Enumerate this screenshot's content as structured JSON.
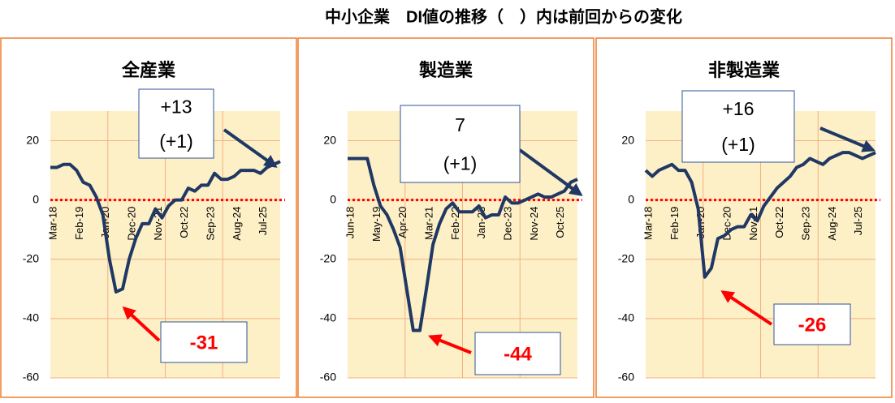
{
  "title": "中小企業　DI値の推移（　）内は前回からの変化",
  "chart_data": [
    {
      "type": "line",
      "title": "全産業",
      "categories": [
        "Mar-18",
        null,
        null,
        null,
        "Feb-19",
        null,
        null,
        null,
        "Jan-20",
        null,
        null,
        null,
        "Dec-20",
        null,
        null,
        null,
        "Nov-21",
        null,
        null,
        null,
        "Oct-22",
        null,
        null,
        null,
        "Sep-23",
        null,
        null,
        null,
        "Aug-24",
        null,
        null,
        null,
        "Jul-25",
        null,
        null,
        null
      ],
      "values": [
        11,
        11,
        12,
        12,
        10,
        6,
        5,
        1,
        -5,
        -20,
        -31,
        -30,
        -20,
        -13,
        -8,
        -8,
        -3,
        -6,
        -2,
        0,
        0,
        4,
        3,
        5,
        5,
        9,
        7,
        7,
        8,
        10,
        10,
        10,
        9,
        11,
        12,
        13
      ],
      "color": "#1f3864",
      "ylim": [
        -60,
        30
      ],
      "yticks": [
        -60,
        -40,
        -20,
        0,
        20
      ],
      "grid": true,
      "annotations": [
        {
          "lines": [
            "+13",
            "(+1)"
          ],
          "color": "#000000"
        },
        {
          "lines": [
            "-31"
          ],
          "color": "#ff0000"
        }
      ]
    },
    {
      "type": "line",
      "title": "製造業",
      "categories": [
        "Jun-18",
        null,
        null,
        null,
        "May-19",
        null,
        null,
        null,
        "Apr-20",
        null,
        null,
        null,
        "Mar-21",
        null,
        null,
        null,
        "Feb-22",
        null,
        null,
        null,
        "Jan-23",
        null,
        null,
        null,
        "Dec-23",
        null,
        null,
        null,
        "Nov-24",
        null,
        null,
        null,
        "Oct-25",
        null,
        null,
        null
      ],
      "values": [
        14,
        14,
        14,
        14,
        5,
        -2,
        -5,
        -10,
        -16,
        -30,
        -44,
        -44,
        -30,
        -15,
        -8,
        -3,
        -1,
        -4,
        -4,
        -4,
        -2,
        -6,
        -5,
        -5,
        1,
        -1,
        -1,
        0,
        1,
        2,
        1,
        1,
        2,
        3,
        6,
        7
      ],
      "color": "#1f3864",
      "ylim": [
        -60,
        30
      ],
      "yticks": [
        -60,
        -40,
        -20,
        0,
        20
      ],
      "grid": true,
      "annotations": [
        {
          "lines": [
            "7",
            "(+1)"
          ],
          "color": "#000000"
        },
        {
          "lines": [
            "-44"
          ],
          "color": "#ff0000"
        }
      ]
    },
    {
      "type": "line",
      "title": "非製造業",
      "categories": [
        "Mar-18",
        null,
        null,
        null,
        "Feb-19",
        null,
        null,
        null,
        "Jan-20",
        null,
        null,
        null,
        "Dec-20",
        null,
        null,
        null,
        "Nov-21",
        null,
        null,
        null,
        "Oct-22",
        null,
        null,
        null,
        "Sep-23",
        null,
        null,
        null,
        "Aug-24",
        null,
        null,
        null,
        "Jul-25",
        null,
        null,
        null
      ],
      "values": [
        10,
        8,
        10,
        11,
        12,
        10,
        10,
        6,
        -3,
        -26,
        -23,
        -13,
        -12,
        -10,
        -9,
        -9,
        -5,
        -7,
        -2,
        1,
        4,
        6,
        8,
        11,
        12,
        14,
        13,
        12,
        14,
        15,
        16,
        16,
        15,
        14,
        15,
        16
      ],
      "color": "#1f3864",
      "ylim": [
        -60,
        30
      ],
      "yticks": [
        -60,
        -40,
        -20,
        0,
        20
      ],
      "grid": true,
      "annotations": [
        {
          "lines": [
            "+16",
            "(+1)"
          ],
          "color": "#000000"
        },
        {
          "lines": [
            "-26"
          ],
          "color": "#ff0000"
        }
      ]
    }
  ]
}
